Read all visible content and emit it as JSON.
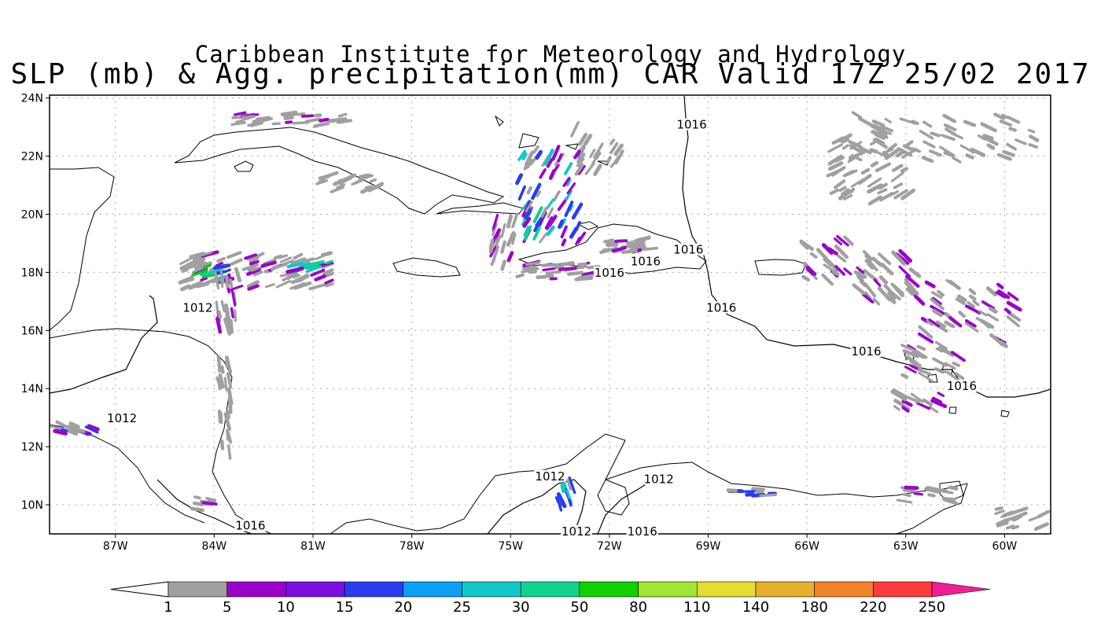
{
  "header": {
    "institute": "Caribbean Institute for Meteorology and Hydrology",
    "product": "SLP (mb) & Agg. precipitation(mm) CAR Valid 17Z 25/02 2017"
  },
  "map": {
    "lat_labels": [
      "24N",
      "22N",
      "20N",
      "18N",
      "16N",
      "14N",
      "12N",
      "10N"
    ],
    "lon_labels": [
      "87W",
      "84W",
      "81W",
      "78W",
      "75W",
      "72W",
      "69W",
      "66W",
      "63W",
      "60W"
    ],
    "isobars": [
      {
        "label": "1016",
        "lon": -69.5,
        "lat": 23.0
      },
      {
        "label": "1016",
        "lon": -69.6,
        "lat": 18.7
      },
      {
        "label": "1016",
        "lon": -70.9,
        "lat": 18.3
      },
      {
        "label": "1016",
        "lon": -72.0,
        "lat": 17.9
      },
      {
        "label": "1016",
        "lon": -68.6,
        "lat": 16.7
      },
      {
        "label": "1016",
        "lon": -64.2,
        "lat": 15.2
      },
      {
        "label": "1016",
        "lon": -61.3,
        "lat": 14.0
      },
      {
        "label": "1016",
        "lon": -82.9,
        "lat": 9.2
      },
      {
        "label": "1016",
        "lon": -71.0,
        "lat": 9.0
      },
      {
        "label": "1012",
        "lon": -84.5,
        "lat": 16.7
      },
      {
        "label": "1012",
        "lon": -86.8,
        "lat": 12.9
      },
      {
        "label": "1012",
        "lon": -73.8,
        "lat": 10.9
      },
      {
        "label": "1012",
        "lon": -70.5,
        "lat": 10.8
      },
      {
        "label": "1012",
        "lon": -73.0,
        "lat": 9.0
      }
    ]
  },
  "colorbar": {
    "labels": [
      "1",
      "5",
      "10",
      "15",
      "20",
      "25",
      "30",
      "50",
      "80",
      "110",
      "140",
      "180",
      "220",
      "250"
    ],
    "colors": [
      "#a0a0a0",
      "#9a00cc",
      "#7a10e0",
      "#2a3cf0",
      "#0aa0f5",
      "#10c8c8",
      "#10d28c",
      "#10d200",
      "#a0e632",
      "#e6dc32",
      "#e6af2d",
      "#f08228",
      "#fa3c3c",
      "#f01e96"
    ]
  }
}
